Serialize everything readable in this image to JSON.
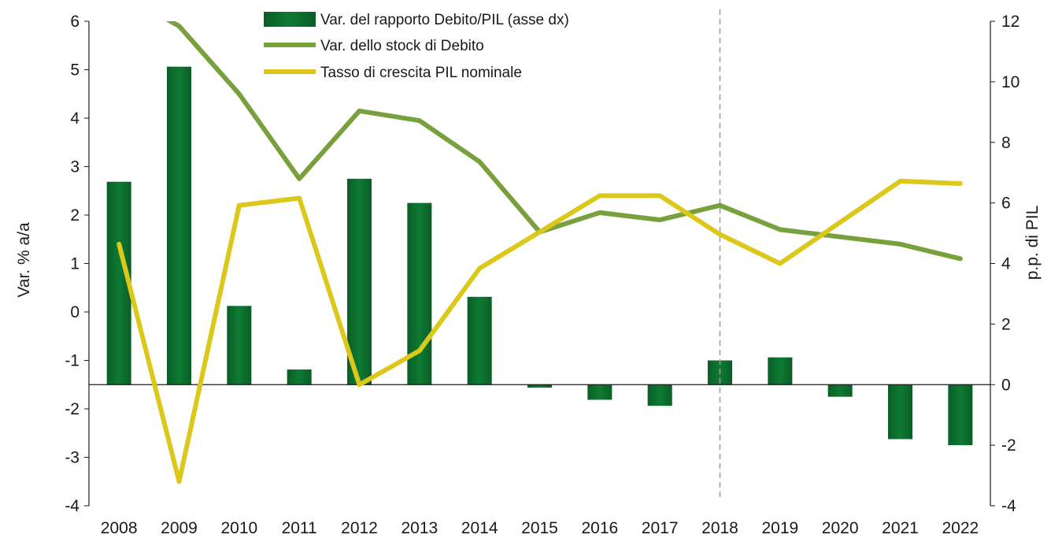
{
  "chart_data": {
    "type": "bar",
    "categories": [
      "2008",
      "2009",
      "2010",
      "2011",
      "2012",
      "2013",
      "2014",
      "2015",
      "2016",
      "2017",
      "2018",
      "2019",
      "2020",
      "2021",
      "2022"
    ],
    "series": [
      {
        "name": "Var. del rapporto Debito/PIL (asse dx)",
        "type": "bar",
        "axis": "right",
        "color": "#0e7a34",
        "values": [
          6.7,
          10.5,
          2.6,
          0.5,
          6.8,
          6.0,
          2.9,
          -0.1,
          -0.5,
          -0.7,
          0.8,
          0.9,
          -0.4,
          -1.8,
          -2.0
        ]
      },
      {
        "name": "Var. dello stock di Debito",
        "type": "line",
        "axis": "left",
        "color": "#78a03c",
        "values": [
          6.6,
          5.9,
          4.5,
          2.75,
          4.15,
          3.95,
          3.1,
          1.65,
          2.05,
          1.9,
          2.2,
          1.7,
          1.55,
          1.4,
          1.1
        ]
      },
      {
        "name": "Tasso di crescita PIL nominale",
        "type": "line",
        "axis": "left",
        "color": "#dcc81a",
        "values": [
          1.4,
          -3.5,
          2.2,
          2.35,
          -1.5,
          -0.8,
          0.9,
          1.65,
          2.4,
          2.4,
          1.6,
          1.0,
          1.85,
          2.7,
          2.65
        ]
      }
    ],
    "ylabel": "Var. % a/a",
    "ylabel_right": "p.p. di PIL",
    "ylim": [
      -4,
      6
    ],
    "ylim_right": [
      -4,
      12
    ],
    "yticks": [
      "6",
      "5",
      "4",
      "3",
      "2",
      "1",
      "0",
      "-1",
      "-2",
      "-3",
      "-4"
    ],
    "yticks_right": [
      "12",
      "10",
      "8",
      "6",
      "4",
      "2",
      "0",
      "-2",
      "-4"
    ],
    "dashed_marker_category": "2018",
    "legend_position": "top-center",
    "grid": false
  }
}
